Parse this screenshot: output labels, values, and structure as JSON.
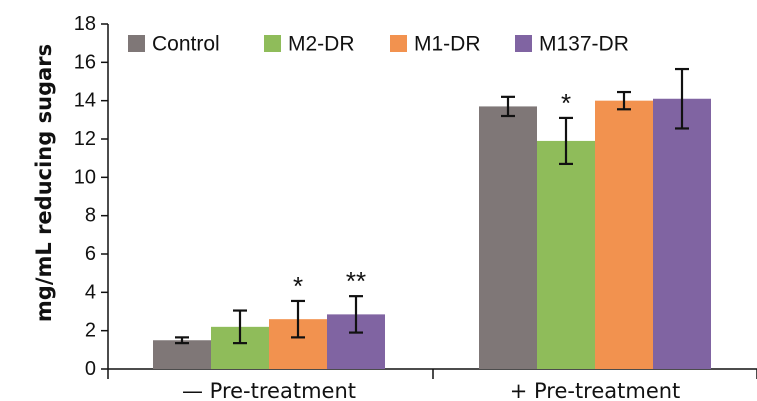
{
  "chart_data": {
    "type": "bar",
    "title": "",
    "xlabel": "",
    "ylabel": "mg/mL reducing sugars",
    "ylim": [
      0,
      18
    ],
    "yticks": [
      0,
      2,
      4,
      6,
      8,
      10,
      12,
      14,
      16,
      18
    ],
    "grid": false,
    "legend_position": "top",
    "categories": [
      "— Pre-treatment",
      "+  Pre-treatment"
    ],
    "series": [
      {
        "name": "Control",
        "color": "#7f7777",
        "values": [
          1.5,
          13.7
        ],
        "errors": [
          0.15,
          0.5
        ],
        "significance": [
          "",
          ""
        ]
      },
      {
        "name": "M2-DR",
        "color": "#8fbc5a",
        "values": [
          2.2,
          11.9
        ],
        "errors": [
          0.85,
          1.2
        ],
        "significance": [
          "",
          "*"
        ]
      },
      {
        "name": "M1-DR",
        "color": "#f2924f",
        "values": [
          2.6,
          14.0
        ],
        "errors": [
          0.95,
          0.45
        ],
        "significance": [
          "*",
          ""
        ]
      },
      {
        "name": "M137-DR",
        "color": "#8064a2",
        "values": [
          2.85,
          14.1
        ],
        "errors": [
          0.95,
          1.55
        ],
        "significance": [
          "**",
          ""
        ]
      }
    ]
  }
}
